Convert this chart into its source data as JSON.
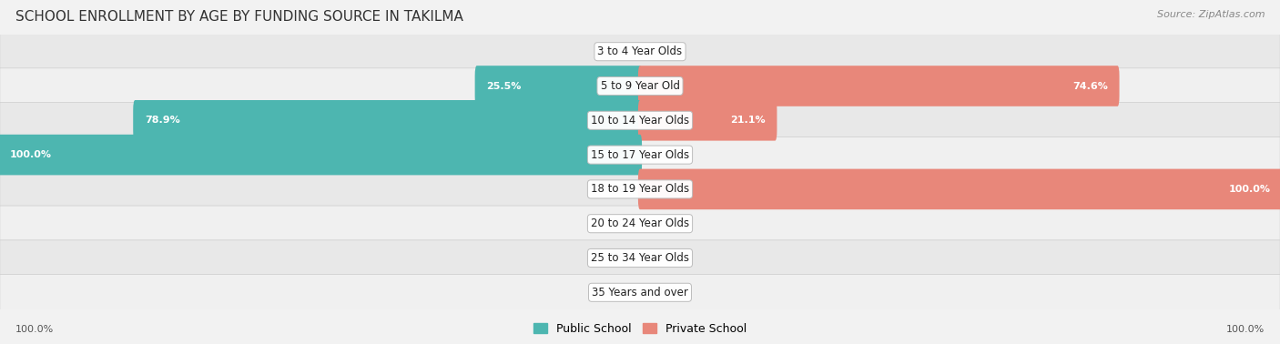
{
  "title": "SCHOOL ENROLLMENT BY AGE BY FUNDING SOURCE IN TAKILMA",
  "source": "Source: ZipAtlas.com",
  "categories": [
    "3 to 4 Year Olds",
    "5 to 9 Year Old",
    "10 to 14 Year Olds",
    "15 to 17 Year Olds",
    "18 to 19 Year Olds",
    "20 to 24 Year Olds",
    "25 to 34 Year Olds",
    "35 Years and over"
  ],
  "public_values": [
    0.0,
    25.5,
    78.9,
    100.0,
    0.0,
    0.0,
    0.0,
    0.0
  ],
  "private_values": [
    0.0,
    74.6,
    21.1,
    0.0,
    100.0,
    0.0,
    0.0,
    0.0
  ],
  "public_color": "#4db6b0",
  "private_color": "#e8877a",
  "public_label": "Public School",
  "private_label": "Private School",
  "bg_color": "#f2f2f2",
  "axis_label_left": "100.0%",
  "axis_label_right": "100.0%",
  "title_fontsize": 11,
  "cat_fontsize": 8.5,
  "value_fontsize": 8.0
}
